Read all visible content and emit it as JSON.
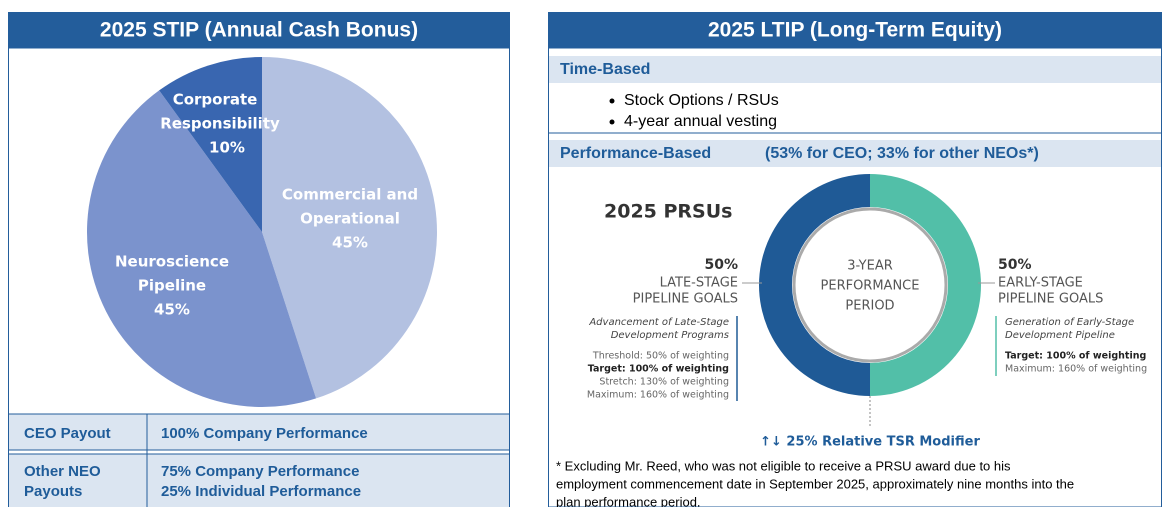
{
  "stip": {
    "title": "2025 STIP (Annual Cash Bonus)",
    "pie": {
      "slices": [
        {
          "label": [
            "Commercial and",
            "Operational"
          ],
          "value": 45,
          "value_label": "45%",
          "color": "#b3c1e1"
        },
        {
          "label": [
            "Neuroscience",
            "Pipeline"
          ],
          "value": 45,
          "value_label": "45%",
          "color": "#7b93cd"
        },
        {
          "label": [
            "Corporate",
            "Responsibility"
          ],
          "value": 10,
          "value_label": "10%",
          "color": "#3966b0"
        }
      ]
    },
    "table": {
      "rows": [
        {
          "label": [
            "CEO Payout"
          ],
          "detail": [
            "100% Company Performance"
          ]
        },
        {
          "label": [
            "Other NEO",
            "Payouts"
          ],
          "detail": [
            "75% Company Performance",
            "25% Individual Performance"
          ]
        }
      ]
    }
  },
  "ltip": {
    "title": "2025 LTIP (Long-Term Equity)",
    "time_based": {
      "heading": "Time-Based",
      "bullets": [
        "Stock Options / RSUs",
        "4-year annual vesting"
      ]
    },
    "performance_based": {
      "heading": "Performance-Based",
      "note": "(53% for CEO; 33% for other NEOs*)"
    },
    "prsu": {
      "title": "2025 PRSUs",
      "center": [
        "3-YEAR",
        "PERFORMANCE",
        "PERIOD"
      ],
      "segments": [
        {
          "value": 50,
          "value_label": "50%",
          "label": [
            "LATE-STAGE",
            "PIPELINE GOALS"
          ],
          "color": "#1f5a96",
          "description": [
            "Advancement of Late-Stage",
            "Development Programs"
          ],
          "details": [
            "Threshold: 50% of weighting",
            "Target: 100% of weighting",
            "Stretch: 130% of weighting",
            "Maximum: 160% of weighting"
          ]
        },
        {
          "value": 50,
          "value_label": "50%",
          "label": [
            "EARLY-STAGE",
            "PIPELINE GOALS"
          ],
          "color": "#52bfa8",
          "description": [
            "Generation of Early-Stage",
            "Development Pipeline"
          ],
          "details": [
            "Target: 100% of weighting",
            "Maximum: 160% of weighting"
          ]
        }
      ],
      "modifier": "↑↓ 25% Relative TSR Modifier"
    },
    "footnote": [
      "* Excluding Mr. Reed, who was not eligible to receive a PRSU award due to his",
      "employment commencement date in September 2025, approximately nine months into the",
      "plan performance period."
    ]
  }
}
